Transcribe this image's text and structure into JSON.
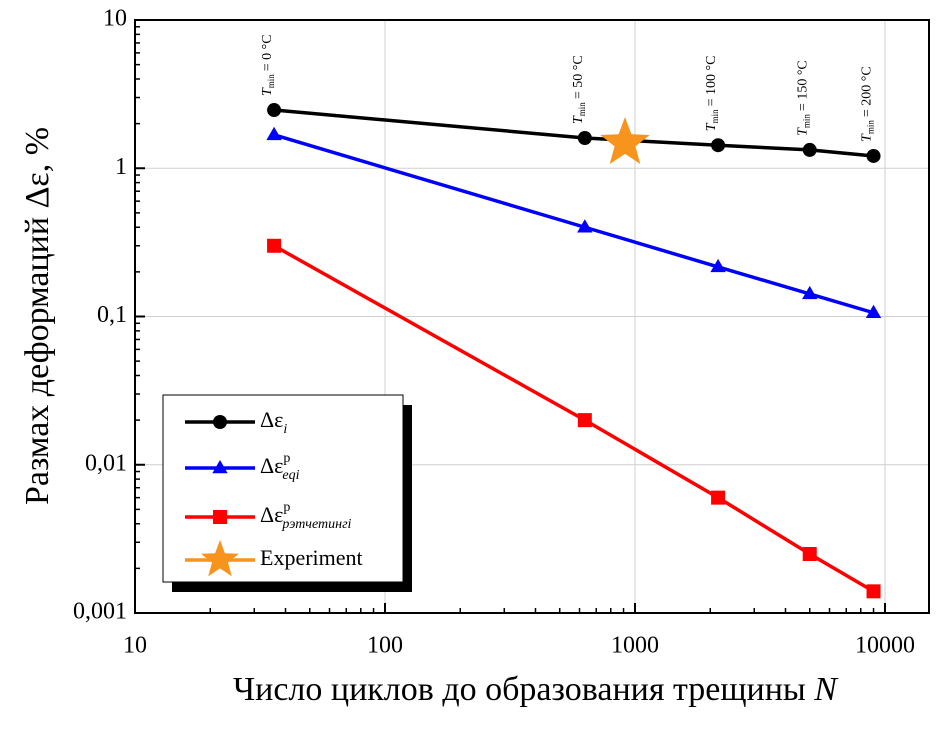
{
  "chart_data": {
    "type": "line",
    "ylabel": "Размах деформаций Δε, %",
    "xlabel": "Число циклов до образования трещины",
    "xlabel_var": "N",
    "x": [
      36,
      630,
      2150,
      5000,
      9000
    ],
    "xlim": [
      10,
      15000
    ],
    "ylim": [
      0.001,
      10
    ],
    "xticks": [
      10,
      100,
      1000,
      10000
    ],
    "yticks": [
      {
        "value": 0.001,
        "label": "0,001"
      },
      {
        "value": 0.01,
        "label": "0,01"
      },
      {
        "value": 0.1,
        "label": "0,1"
      },
      1,
      10
    ],
    "log_x": true,
    "log_y": true,
    "grid": true,
    "legend": "lower left",
    "series": [
      {
        "name": "Δε",
        "sub": "i",
        "color": "#000000",
        "marker": "circle",
        "values": [
          2.47,
          1.6,
          1.43,
          1.33,
          1.21
        ]
      },
      {
        "name": "Δε",
        "sup": "p",
        "sub": "eqi",
        "color": "#0000ff",
        "marker": "triangle",
        "values": [
          1.68,
          0.4,
          0.216,
          0.142,
          0.106
        ]
      },
      {
        "name": "Δε",
        "sup": "p",
        "sub": "рэтчетингi",
        "color": "#ff0000",
        "marker": "square",
        "values": [
          0.3,
          0.02,
          0.006,
          0.0025,
          0.0014
        ]
      },
      {
        "name": "Experiment",
        "color": "#f7941d",
        "marker": "star",
        "x": [
          912
        ],
        "values": [
          1.48
        ]
      }
    ],
    "annotations": [
      {
        "var": "T",
        "sub": "min",
        "text": "= 0 °C"
      },
      {
        "var": "T",
        "sub": "min",
        "text": "= 50 °C"
      },
      {
        "var": "T",
        "sub": "min",
        "text": "= 100 °C"
      },
      {
        "var": "T",
        "sub": "min",
        "text": "= 150 °C"
      },
      {
        "var": "T",
        "sub": "min",
        "text": "= 200 °C"
      }
    ]
  }
}
